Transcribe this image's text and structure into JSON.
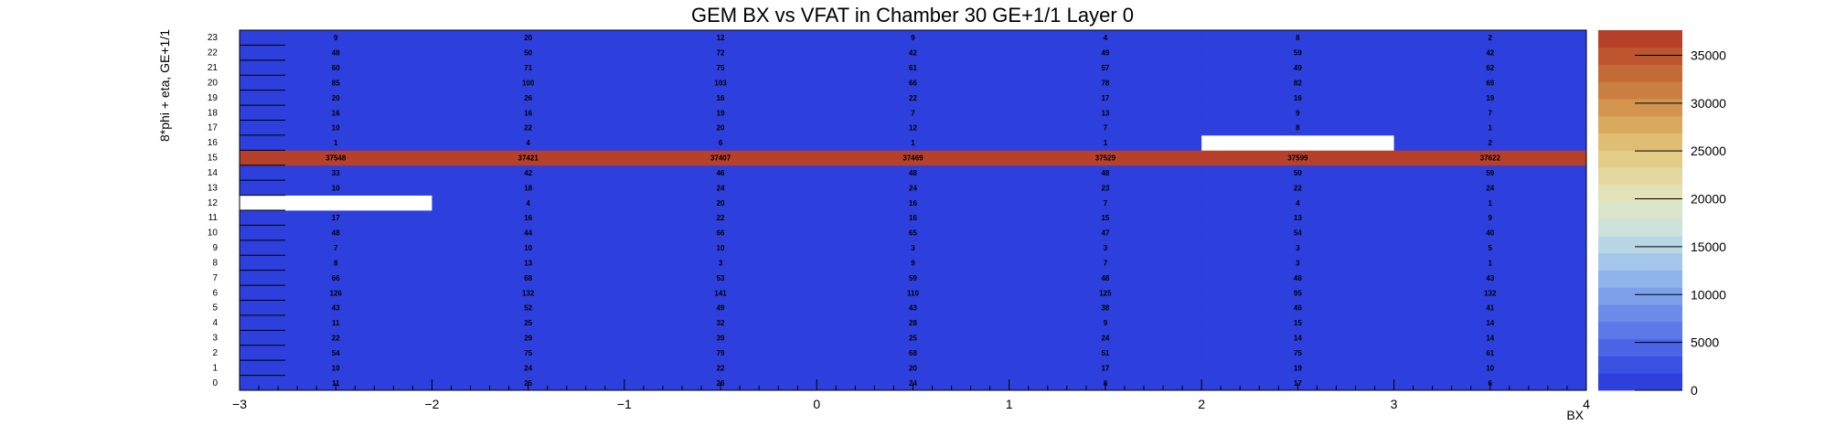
{
  "chart_data": {
    "type": "heatmap",
    "title": "GEM BX vs VFAT in Chamber 30 GE+1/1 Layer 0",
    "xlabel": "BX",
    "ylabel": "8*phi + eta, GE+1/1",
    "xlim": [
      -3,
      4
    ],
    "ylim": [
      0,
      24
    ],
    "x_tick_labels": [
      "−3",
      "−2",
      "−1",
      "0",
      "1",
      "2",
      "3",
      "4"
    ],
    "x_bins": [
      -3,
      -2,
      -1,
      0,
      1,
      2,
      3
    ],
    "y_bins": [
      0,
      1,
      2,
      3,
      4,
      5,
      6,
      7,
      8,
      9,
      10,
      11,
      12,
      13,
      14,
      15,
      16,
      17,
      18,
      19,
      20,
      21,
      22,
      23
    ],
    "y_tick_labels": [
      "0",
      "1",
      "2",
      "3",
      "4",
      "5",
      "6",
      "7",
      "8",
      "9",
      "10",
      "11",
      "12",
      "13",
      "14",
      "15",
      "16",
      "17",
      "18",
      "19",
      "20",
      "21",
      "22",
      "23"
    ],
    "values": [
      [
        11,
        25,
        26,
        24,
        8,
        17,
        6
      ],
      [
        10,
        24,
        22,
        20,
        17,
        19,
        10
      ],
      [
        54,
        75,
        79,
        68,
        51,
        75,
        61
      ],
      [
        22,
        29,
        39,
        25,
        24,
        14,
        14
      ],
      [
        11,
        25,
        32,
        28,
        9,
        15,
        14
      ],
      [
        43,
        52,
        49,
        43,
        38,
        46,
        41
      ],
      [
        126,
        132,
        141,
        110,
        125,
        95,
        132
      ],
      [
        66,
        68,
        53,
        59,
        48,
        48,
        43
      ],
      [
        8,
        13,
        3,
        9,
        7,
        3,
        1
      ],
      [
        7,
        10,
        10,
        3,
        3,
        3,
        5
      ],
      [
        48,
        44,
        66,
        65,
        47,
        54,
        40
      ],
      [
        17,
        16,
        22,
        16,
        15,
        13,
        9
      ],
      [
        null,
        4,
        20,
        16,
        7,
        4,
        1
      ],
      [
        10,
        18,
        24,
        24,
        23,
        22,
        24
      ],
      [
        33,
        42,
        46,
        48,
        48,
        50,
        59
      ],
      [
        37548,
        37421,
        37407,
        37469,
        37529,
        37599,
        37622
      ],
      [
        1,
        4,
        6,
        1,
        1,
        null,
        2
      ],
      [
        10,
        22,
        20,
        12,
        7,
        8,
        1
      ],
      [
        16,
        16,
        19,
        7,
        13,
        9,
        7
      ],
      [
        20,
        26,
        16,
        22,
        17,
        16,
        19
      ],
      [
        85,
        100,
        103,
        66,
        78,
        82,
        69
      ],
      [
        60,
        71,
        75,
        61,
        57,
        49,
        62
      ],
      [
        48,
        50,
        72,
        42,
        49,
        59,
        42
      ],
      [
        9,
        20,
        12,
        9,
        4,
        8,
        2
      ]
    ],
    "zlim": [
      0,
      37622
    ],
    "colorbar_ticks": [
      0,
      5000,
      10000,
      15000,
      20000,
      25000,
      30000,
      35000
    ],
    "colorbar_colors": [
      "#2d3fdd",
      "#3a52e2",
      "#4a65e6",
      "#5b79e8",
      "#6b8ce9",
      "#7ca0ea",
      "#8fb3eb",
      "#a4c6eb",
      "#b9d6e4",
      "#cce2db",
      "#dae6cc",
      "#e1e2b7",
      "#e3d9a0",
      "#e2cc88",
      "#dfbd72",
      "#d9aa5e",
      "#d2944e",
      "#cb7e42",
      "#c46a37",
      "#bd552f",
      "#b7402a"
    ],
    "grid": false,
    "legend": "colorbar-right"
  }
}
